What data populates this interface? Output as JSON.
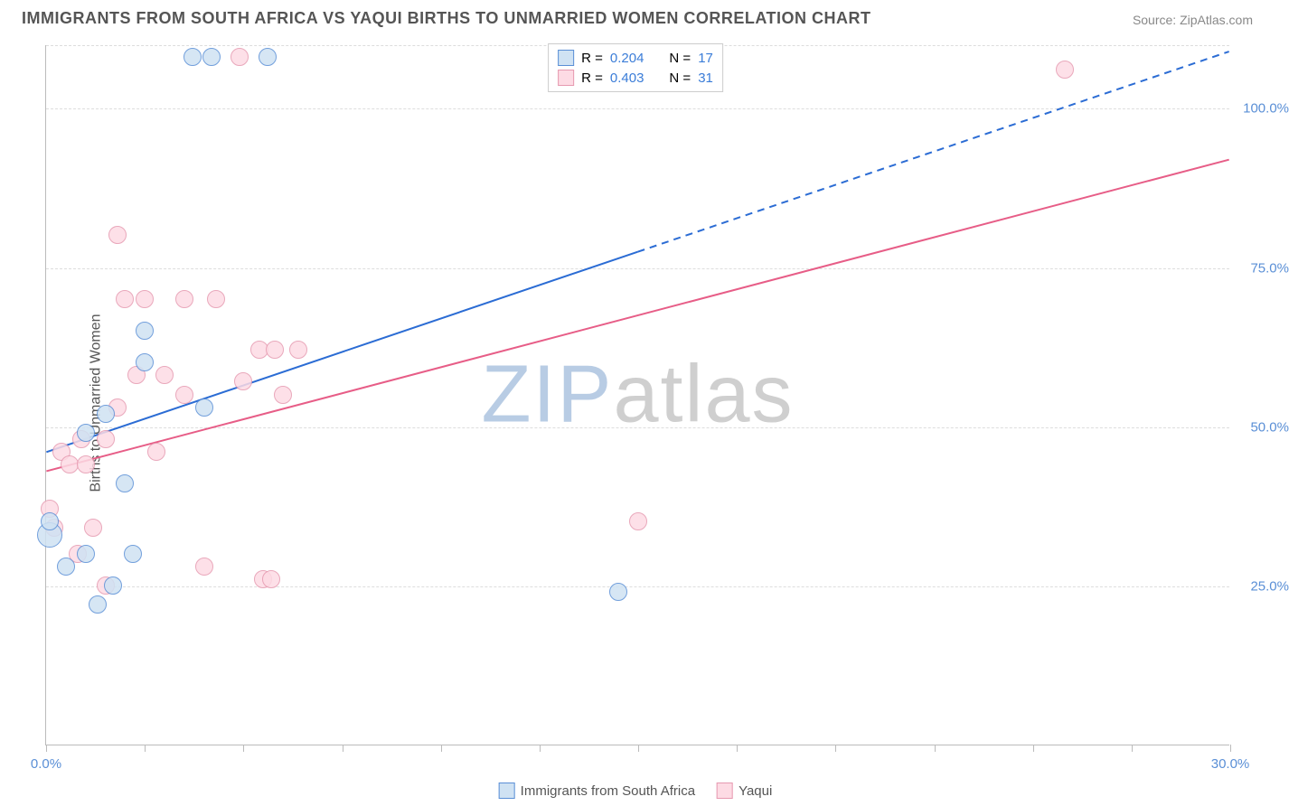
{
  "title": "IMMIGRANTS FROM SOUTH AFRICA VS YAQUI BIRTHS TO UNMARRIED WOMEN CORRELATION CHART",
  "source_label": "Source: ",
  "source_link": "ZipAtlas.com",
  "y_axis_label": "Births to Unmarried Women",
  "watermark": {
    "zip": "ZIP",
    "atlas": "atlas"
  },
  "chart": {
    "type": "scatter",
    "xlim": [
      0,
      30
    ],
    "ylim": [
      0,
      110
    ],
    "x_tick_step": 2.5,
    "x_tick_labels": {
      "0": "0.0%",
      "30": "30.0%"
    },
    "y_gridlines": [
      25,
      50,
      75,
      100,
      110
    ],
    "y_tick_labels": {
      "25": "25.0%",
      "50": "50.0%",
      "75": "75.0%",
      "100": "100.0%"
    },
    "background_color": "#ffffff",
    "grid_color": "#dddddd",
    "axis_color": "#bbbbbb",
    "series": {
      "a": {
        "label": "Immigrants from South Africa",
        "fill": "#cfe2f3",
        "stroke": "#5a8fd6",
        "r_value": "0.204",
        "n_value": "17",
        "marker_radius": 10,
        "points": [
          {
            "x": 0.1,
            "y": 33,
            "r": 14
          },
          {
            "x": 0.1,
            "y": 35
          },
          {
            "x": 0.5,
            "y": 28
          },
          {
            "x": 1.0,
            "y": 30
          },
          {
            "x": 1.3,
            "y": 22
          },
          {
            "x": 1.7,
            "y": 25
          },
          {
            "x": 2.2,
            "y": 30
          },
          {
            "x": 2.0,
            "y": 41
          },
          {
            "x": 1.0,
            "y": 49
          },
          {
            "x": 1.5,
            "y": 52
          },
          {
            "x": 2.5,
            "y": 60
          },
          {
            "x": 2.5,
            "y": 65
          },
          {
            "x": 4.0,
            "y": 53
          },
          {
            "x": 3.7,
            "y": 108
          },
          {
            "x": 4.2,
            "y": 108
          },
          {
            "x": 5.6,
            "y": 108
          },
          {
            "x": 14.5,
            "y": 24
          }
        ],
        "trend": {
          "x1": 0,
          "y1": 46,
          "solid_to_x": 15,
          "x2": 30,
          "y2": 109,
          "color": "#2b6cd4",
          "width": 2
        }
      },
      "b": {
        "label": "Yaqui",
        "fill": "#fddbe4",
        "stroke": "#e699b0",
        "r_value": "0.403",
        "n_value": "31",
        "marker_radius": 10,
        "points": [
          {
            "x": 0.1,
            "y": 37
          },
          {
            "x": 0.2,
            "y": 34
          },
          {
            "x": 0.4,
            "y": 46
          },
          {
            "x": 0.6,
            "y": 44
          },
          {
            "x": 0.9,
            "y": 48
          },
          {
            "x": 0.8,
            "y": 30
          },
          {
            "x": 1.2,
            "y": 34
          },
          {
            "x": 1.0,
            "y": 44
          },
          {
            "x": 1.5,
            "y": 48
          },
          {
            "x": 1.5,
            "y": 25
          },
          {
            "x": 1.8,
            "y": 80
          },
          {
            "x": 1.8,
            "y": 53
          },
          {
            "x": 2.0,
            "y": 70
          },
          {
            "x": 2.5,
            "y": 70
          },
          {
            "x": 2.8,
            "y": 46
          },
          {
            "x": 3.0,
            "y": 58
          },
          {
            "x": 3.5,
            "y": 70
          },
          {
            "x": 3.5,
            "y": 55
          },
          {
            "x": 4.0,
            "y": 28
          },
          {
            "x": 4.3,
            "y": 70
          },
          {
            "x": 5.0,
            "y": 57
          },
          {
            "x": 5.4,
            "y": 62
          },
          {
            "x": 5.5,
            "y": 26
          },
          {
            "x": 5.7,
            "y": 26
          },
          {
            "x": 4.9,
            "y": 108
          },
          {
            "x": 5.8,
            "y": 62
          },
          {
            "x": 6.0,
            "y": 55
          },
          {
            "x": 6.4,
            "y": 62
          },
          {
            "x": 2.3,
            "y": 58
          },
          {
            "x": 15.0,
            "y": 35
          },
          {
            "x": 25.8,
            "y": 106
          }
        ],
        "trend": {
          "x1": 0,
          "y1": 43,
          "x2": 30,
          "y2": 92,
          "color": "#e75d87",
          "width": 2
        }
      }
    }
  },
  "legend_top": {
    "r_label": "R =",
    "n_label": "N ="
  }
}
